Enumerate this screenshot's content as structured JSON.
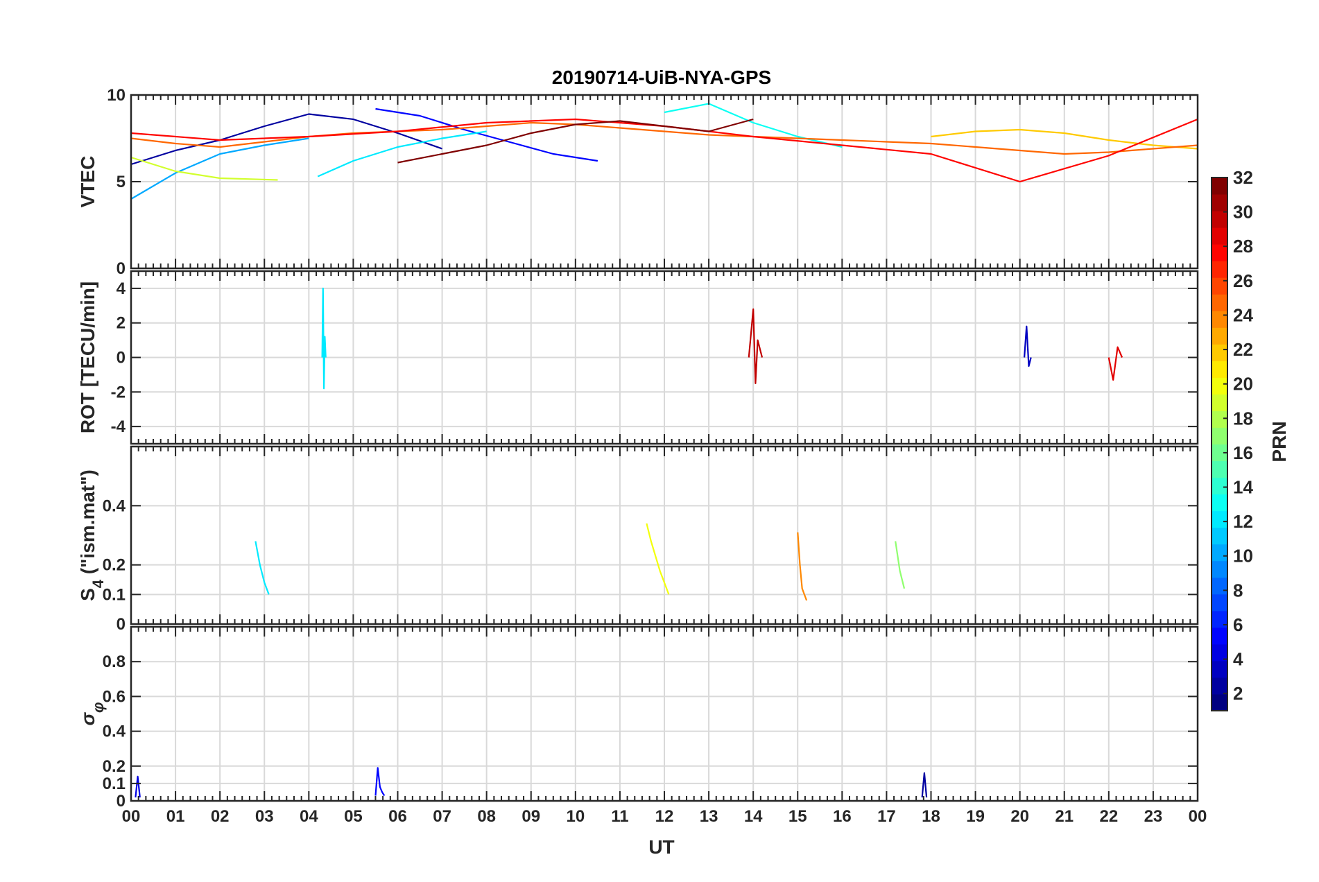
{
  "figure": {
    "title": "20190714-UiB-NYA-GPS",
    "xlabel": "UT",
    "xticks": [
      "00",
      "01",
      "02",
      "03",
      "04",
      "05",
      "06",
      "07",
      "08",
      "09",
      "10",
      "11",
      "12",
      "13",
      "14",
      "15",
      "16",
      "17",
      "18",
      "19",
      "20",
      "21",
      "22",
      "23",
      "00"
    ]
  },
  "colorbar": {
    "label": "PRN",
    "range": [
      1,
      32
    ],
    "ticks": [
      "2",
      "4",
      "6",
      "8",
      "10",
      "12",
      "14",
      "16",
      "18",
      "20",
      "22",
      "24",
      "26",
      "28",
      "30",
      "32"
    ],
    "colormap": "jet"
  },
  "chart_data": [
    {
      "type": "line",
      "panel": "VTEC",
      "ylabel": "VTEC",
      "ylim": [
        0,
        10
      ],
      "yticks": [
        "0",
        "5",
        "10"
      ],
      "xlim": [
        0,
        24
      ],
      "grid": true,
      "series": [
        {
          "prn": 2,
          "x": [
            0,
            1,
            2,
            3,
            4,
            5,
            6,
            7
          ],
          "values": [
            6.0,
            6.8,
            7.4,
            8.2,
            8.9,
            8.6,
            7.8,
            6.9
          ]
        },
        {
          "prn": 5,
          "x": [
            5.5,
            6.5,
            7.5,
            8.5,
            9.5,
            10.5
          ],
          "values": [
            9.2,
            8.8,
            8.0,
            7.3,
            6.6,
            6.2
          ]
        },
        {
          "prn": 10,
          "x": [
            0,
            1,
            2,
            3,
            4
          ],
          "values": [
            4.0,
            5.5,
            6.6,
            7.1,
            7.5
          ]
        },
        {
          "prn": 12,
          "x": [
            4.2,
            5,
            6,
            7,
            8
          ],
          "values": [
            5.3,
            6.2,
            7.0,
            7.5,
            7.9
          ]
        },
        {
          "prn": 13,
          "x": [
            12,
            13,
            14,
            15,
            16
          ],
          "values": [
            9.0,
            9.5,
            8.4,
            7.6,
            7.0
          ]
        },
        {
          "prn": 19,
          "x": [
            0,
            1,
            2,
            3.3
          ],
          "values": [
            6.4,
            5.6,
            5.2,
            5.1
          ]
        },
        {
          "prn": 22,
          "x": [
            18,
            19,
            20,
            21,
            22,
            23,
            24
          ],
          "values": [
            7.6,
            7.9,
            8.0,
            7.8,
            7.4,
            7.1,
            6.9
          ]
        },
        {
          "prn": 25,
          "x": [
            0,
            1,
            2,
            3,
            4,
            5,
            6,
            7,
            8,
            9,
            10,
            11,
            12,
            13,
            14,
            15,
            16,
            17,
            18,
            19,
            20,
            21,
            22,
            23,
            24
          ],
          "values": [
            7.5,
            7.2,
            7.0,
            7.3,
            7.6,
            7.8,
            7.9,
            8.0,
            8.2,
            8.4,
            8.3,
            8.1,
            7.9,
            7.7,
            7.6,
            7.5,
            7.4,
            7.3,
            7.2,
            7.0,
            6.8,
            6.6,
            6.7,
            6.9,
            7.1
          ]
        },
        {
          "prn": 28,
          "x": [
            0,
            2,
            4,
            6,
            8,
            10,
            12,
            14,
            16,
            18,
            20,
            22,
            24
          ],
          "values": [
            7.8,
            7.4,
            7.6,
            7.9,
            8.4,
            8.6,
            8.2,
            7.6,
            7.1,
            6.6,
            5.0,
            6.5,
            8.6
          ]
        },
        {
          "prn": 32,
          "x": [
            6,
            7,
            8,
            9,
            10,
            11,
            12,
            13,
            14
          ],
          "values": [
            6.1,
            6.6,
            7.1,
            7.8,
            8.3,
            8.5,
            8.2,
            7.9,
            8.6
          ]
        }
      ]
    },
    {
      "type": "line",
      "panel": "ROT",
      "ylabel": "ROT [TECU/min]",
      "ylim": [
        -5,
        5
      ],
      "yticks": [
        "-4",
        "-2",
        "0",
        "2",
        "4"
      ],
      "xlim": [
        0,
        24
      ],
      "grid": true,
      "series": [
        {
          "prn": 12,
          "x": [
            4.3,
            4.32,
            4.34,
            4.36,
            4.38
          ],
          "values": [
            0,
            4.0,
            -1.8,
            1.2,
            0
          ]
        },
        {
          "prn": 30,
          "x": [
            13.9,
            14.0,
            14.05,
            14.1,
            14.2
          ],
          "values": [
            0,
            2.8,
            -1.5,
            1.0,
            0
          ]
        },
        {
          "prn": 3,
          "x": [
            20.1,
            20.15,
            20.2,
            20.25
          ],
          "values": [
            0,
            1.8,
            -0.5,
            0
          ]
        },
        {
          "prn": 29,
          "x": [
            22.0,
            22.1,
            22.2,
            22.3
          ],
          "values": [
            0,
            -1.3,
            0.6,
            0
          ]
        }
      ]
    },
    {
      "type": "line",
      "panel": "S4",
      "ylabel": "S",
      "ylabel_subscript": "4",
      "ylabel_suffix": " (\"ism.mat\")",
      "ylim": [
        0,
        0.6
      ],
      "yticks": [
        "0",
        "0.1",
        "0.2",
        "0.4"
      ],
      "xlim": [
        0,
        24
      ],
      "grid": true,
      "series": [
        {
          "prn": 20,
          "x": [
            11.6,
            11.7,
            11.9,
            12.1
          ],
          "values": [
            0.34,
            0.28,
            0.18,
            0.1
          ]
        },
        {
          "prn": 24,
          "x": [
            15.0,
            15.05,
            15.1,
            15.2
          ],
          "values": [
            0.31,
            0.2,
            0.12,
            0.08
          ]
        },
        {
          "prn": 12,
          "x": [
            2.8,
            2.9,
            3.0,
            3.1
          ],
          "values": [
            0.28,
            0.2,
            0.14,
            0.1
          ]
        },
        {
          "prn": 17,
          "x": [
            17.2,
            17.3,
            17.4
          ],
          "values": [
            0.28,
            0.18,
            0.12
          ]
        }
      ]
    },
    {
      "type": "line",
      "panel": "sigma_phi",
      "ylabel": "σ",
      "ylabel_subscript": "φ",
      "ylim": [
        0,
        1
      ],
      "yticks": [
        "0",
        "0.1",
        "0.2",
        "0.4",
        "0.6",
        "0.8"
      ],
      "xlim": [
        0,
        24
      ],
      "grid": true,
      "series": [
        {
          "prn": 5,
          "x": [
            5.5,
            5.55,
            5.6,
            5.65,
            5.7
          ],
          "values": [
            0.03,
            0.19,
            0.08,
            0.05,
            0.03
          ]
        },
        {
          "prn": 2,
          "x": [
            17.8,
            17.85,
            17.9
          ],
          "values": [
            0.02,
            0.16,
            0.02
          ]
        },
        {
          "prn": 4,
          "x": [
            0.1,
            0.15,
            0.2
          ],
          "values": [
            0.02,
            0.14,
            0.02
          ]
        }
      ]
    }
  ]
}
